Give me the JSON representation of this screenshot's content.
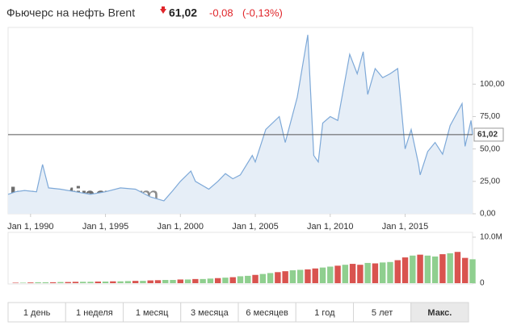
{
  "header": {
    "title": "Фьючерс на нефть Brent",
    "price": "61,02",
    "change": "-0,08",
    "change_percent": "(-0,13%)"
  },
  "watermark": [
    "Investing",
    ".com"
  ],
  "chart_data": [
    {
      "type": "area",
      "color": "#7ea9d8",
      "fill": "#e6eef7",
      "x": [
        1988.5,
        1989,
        1989.6,
        1990.4,
        1990.8,
        1991.2,
        1992,
        1993,
        1994,
        1995,
        1996,
        1997,
        1998,
        1998.9,
        1999.5,
        2000,
        2000.7,
        2001,
        2001.9,
        2002.5,
        2003,
        2003.5,
        2004,
        2004.8,
        2005,
        2005.7,
        2006.6,
        2007,
        2007.8,
        2008.5,
        2008.9,
        2009.2,
        2009.5,
        2010,
        2010.5,
        2011.3,
        2011.8,
        2012.2,
        2012.5,
        2013,
        2013.5,
        2014,
        2014.5,
        2015,
        2015.4,
        2015.9,
        2016,
        2016.5,
        2017,
        2017.5,
        2018,
        2018.8,
        2019,
        2019.4,
        2019.5
      ],
      "values": [
        15,
        17,
        18,
        17,
        38,
        20,
        19,
        17,
        15,
        17,
        20,
        19,
        13,
        10,
        18,
        25,
        33,
        25,
        19,
        25,
        31,
        27,
        30,
        45,
        40,
        65,
        75,
        55,
        90,
        138,
        45,
        40,
        70,
        75,
        72,
        123,
        108,
        125,
        92,
        112,
        105,
        108,
        112,
        50,
        65,
        38,
        30,
        48,
        55,
        46,
        68,
        85,
        52,
        72,
        61.02
      ],
      "xlim": [
        1988.5,
        2019.5
      ],
      "xticks": [
        {
          "value": 1990,
          "label": "Jan 1, 1990"
        },
        {
          "value": 1995,
          "label": "Jan 1, 1995"
        },
        {
          "value": 2000,
          "label": "Jan 1, 2000"
        },
        {
          "value": 2005,
          "label": "Jan 1, 2005"
        },
        {
          "value": 2010,
          "label": "Jan 1, 2010"
        },
        {
          "value": 2015,
          "label": "Jan 1, 2015"
        }
      ],
      "ylim": [
        0,
        140
      ],
      "yticks": [
        {
          "value": 0,
          "label": "0,00"
        },
        {
          "value": 25,
          "label": "25,00"
        },
        {
          "value": 50,
          "label": "50,00"
        },
        {
          "value": 75,
          "label": "75,00"
        },
        {
          "value": 100,
          "label": "100,00"
        }
      ],
      "last": {
        "value": 61.02,
        "label": "61,02"
      }
    },
    {
      "type": "bar",
      "x": [
        1989,
        1989.5,
        1990,
        1990.5,
        1991,
        1991.5,
        1992,
        1992.5,
        1993,
        1993.5,
        1994,
        1994.5,
        1995,
        1995.5,
        1996,
        1996.5,
        1997,
        1997.5,
        1998,
        1998.5,
        1999,
        1999.5,
        2000,
        2000.5,
        2001,
        2001.5,
        2002,
        2002.5,
        2003,
        2003.5,
        2004,
        2004.5,
        2005,
        2005.5,
        2006,
        2006.5,
        2007,
        2007.5,
        2008,
        2008.5,
        2009,
        2009.5,
        2010,
        2010.5,
        2011,
        2011.5,
        2012,
        2012.5,
        2013,
        2013.5,
        2014,
        2014.5,
        2015,
        2015.5,
        2016,
        2016.5,
        2017,
        2017.5,
        2018,
        2018.5,
        2019,
        2019.5
      ],
      "values": [
        100000,
        100000,
        150000,
        200000,
        200000,
        200000,
        250000,
        250000,
        300000,
        300000,
        300000,
        350000,
        350000,
        400000,
        400000,
        450000,
        500000,
        500000,
        600000,
        650000,
        700000,
        700000,
        800000,
        800000,
        900000,
        900000,
        1000000,
        1100000,
        1200000,
        1300000,
        1500000,
        1600000,
        1800000,
        2000000,
        2200000,
        2400000,
        2600000,
        2800000,
        2900000,
        3000000,
        3200000,
        3400000,
        3600000,
        3800000,
        4000000,
        4200000,
        4000000,
        4400000,
        4300000,
        4500000,
        4600000,
        5000000,
        5600000,
        6000000,
        6200000,
        6000000,
        5800000,
        6300000,
        6500000,
        6800000,
        5500000,
        5200000
      ],
      "colors": [
        "#d9534f",
        "#8fcf8f",
        "#d9534f",
        "#8fcf8f",
        "#8fcf8f",
        "#d9534f",
        "#8fcf8f",
        "#d9534f",
        "#d9534f",
        "#8fcf8f",
        "#8fcf8f",
        "#d9534f",
        "#8fcf8f",
        "#d9534f",
        "#8fcf8f",
        "#8fcf8f",
        "#d9534f",
        "#8fcf8f",
        "#d9534f",
        "#d9534f",
        "#8fcf8f",
        "#8fcf8f",
        "#d9534f",
        "#8fcf8f",
        "#d9534f",
        "#8fcf8f",
        "#8fcf8f",
        "#d9534f",
        "#8fcf8f",
        "#d9534f",
        "#8fcf8f",
        "#8fcf8f",
        "#d9534f",
        "#8fcf8f",
        "#8fcf8f",
        "#d9534f",
        "#d9534f",
        "#8fcf8f",
        "#8fcf8f",
        "#d9534f",
        "#d9534f",
        "#8fcf8f",
        "#8fcf8f",
        "#d9534f",
        "#8fcf8f",
        "#d9534f",
        "#d9534f",
        "#8fcf8f",
        "#d9534f",
        "#8fcf8f",
        "#8fcf8f",
        "#d9534f",
        "#d9534f",
        "#8fcf8f",
        "#d9534f",
        "#8fcf8f",
        "#8fcf8f",
        "#d9534f",
        "#8fcf8f",
        "#d9534f",
        "#d9534f",
        "#8fcf8f"
      ],
      "xlim": [
        1988.5,
        2019.5
      ],
      "ylim": [
        0,
        10000000
      ],
      "yticks": [
        {
          "value": 0,
          "label": "0"
        },
        {
          "value": 10000000,
          "label": "10.0M"
        }
      ]
    }
  ],
  "range_buttons": [
    "1 день",
    "1 неделя",
    "1 месяц",
    "3 месяца",
    "6 месяцев",
    "1 год",
    "5 лет",
    "Макс."
  ],
  "selected_button": 7
}
